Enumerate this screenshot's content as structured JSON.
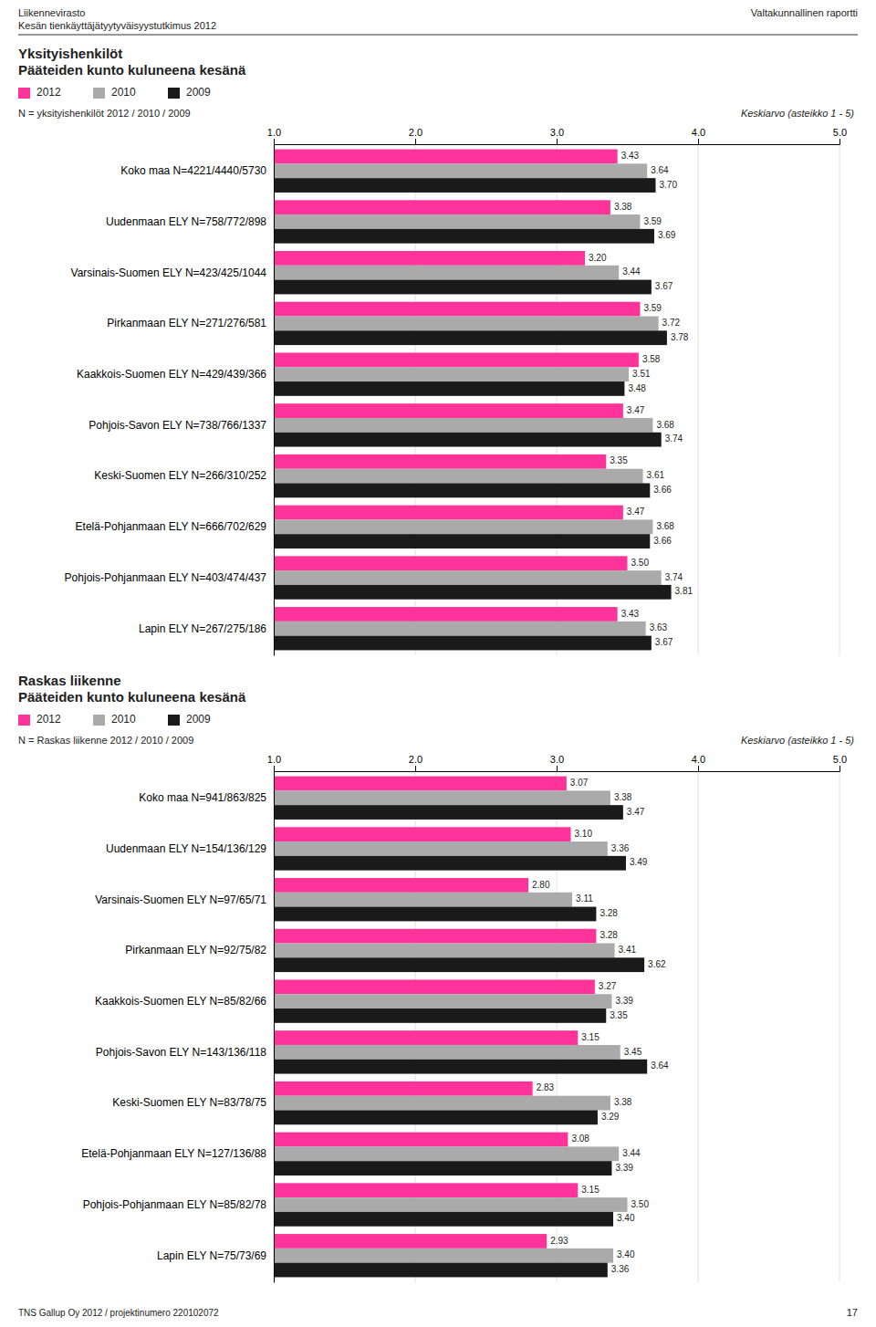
{
  "header_left": [
    "Liikennevirasto",
    "Kesän tienkäyttäjätyytyväisyystutkimus 2012"
  ],
  "header_right": "Valtakunnallinen raportti",
  "footer": "TNS Gallup Oy 2012 / projektinumero 220102072",
  "page_number": "17",
  "chart_data": [
    {
      "type": "bar",
      "orientation": "horizontal",
      "title": "Yksityishenkilöt",
      "subtitle": "Pääteiden kunto kuluneena kesänä",
      "annotations": [
        "N = yksityishenkilöt 2012 / 2010 / 2009"
      ],
      "xlabel": "Keskiarvo (asteikko 1 - 5)",
      "legend": "upper left",
      "grid": true,
      "data_labels": true,
      "categories": [
        "Koko maa N=4221/4440/5730",
        "Uudenmaan ELY N=758/772/898",
        "Varsinais-Suomen ELY N=423/425/1044",
        "Pirkanmaan ELY N=271/276/581",
        "Kaakkois-Suomen ELY N=429/439/366",
        "Pohjois-Savon ELY N=738/766/1337",
        "Keski-Suomen ELY N=266/310/252",
        "Etelä-Pohjanmaan ELY N=666/702/629",
        "Pohjois-Pohjanmaan ELY N=403/474/437",
        "Lapin ELY N=267/275/186"
      ],
      "series": [
        {
          "name": "2012",
          "color": "#FF3399",
          "values": [
            3.43,
            3.38,
            3.2,
            3.59,
            3.58,
            3.47,
            3.35,
            3.47,
            3.5,
            3.43
          ],
          "value_labels": [
            "3.43",
            "3.38",
            "3.20",
            "3.59",
            "3.58",
            "3.47",
            "3.35",
            "3.47",
            "3.50",
            "3.43"
          ]
        },
        {
          "name": "2010",
          "color": "#AAAAAA",
          "values": [
            3.64,
            3.59,
            3.44,
            3.72,
            3.51,
            3.68,
            3.61,
            3.68,
            3.74,
            3.63
          ],
          "value_labels": [
            "3.64",
            "3.59",
            "3.44",
            "3.72",
            "3.51",
            "3.68",
            "3.61",
            "3.68",
            "3.74",
            "3.63"
          ]
        },
        {
          "name": "2009",
          "color": "#1A1A1A",
          "values": [
            3.7,
            3.69,
            3.67,
            3.78,
            3.48,
            3.74,
            3.66,
            3.66,
            3.81,
            3.67
          ],
          "value_labels": [
            "3.70",
            "3.69",
            "3.67",
            "3.78",
            "3.48",
            "3.74",
            "3.66",
            "3.66",
            "3.81",
            "3.67"
          ]
        }
      ],
      "xlim": [
        1.0,
        5.0
      ],
      "xticks": [
        {
          "value": 1.0,
          "label": "1.0"
        },
        {
          "value": 2.0,
          "label": "2.0"
        },
        {
          "value": 3.0,
          "label": "3.0"
        },
        {
          "value": 4.0,
          "label": "4.0"
        },
        {
          "value": 5.0,
          "label": "5.0"
        }
      ]
    },
    {
      "type": "bar",
      "orientation": "horizontal",
      "title": "Raskas liikenne",
      "subtitle": "Pääteiden kunto kuluneena kesänä",
      "annotations": [
        "N = Raskas liikenne 2012 / 2010 / 2009"
      ],
      "xlabel": "Keskiarvo (asteikko 1 - 5)",
      "legend": "upper left",
      "grid": true,
      "data_labels": true,
      "categories": [
        "Koko maa N=941/863/825",
        "Uudenmaan ELY N=154/136/129",
        "Varsinais-Suomen ELY N=97/65/71",
        "Pirkanmaan ELY N=92/75/82",
        "Kaakkois-Suomen ELY N=85/82/66",
        "Pohjois-Savon ELY N=143/136/118",
        "Keski-Suomen ELY N=83/78/75",
        "Etelä-Pohjanmaan ELY N=127/136/88",
        "Pohjois-Pohjanmaan ELY N=85/82/78",
        "Lapin ELY N=75/73/69"
      ],
      "series": [
        {
          "name": "2012",
          "color": "#FF3399",
          "values": [
            3.07,
            3.1,
            2.8,
            3.28,
            3.27,
            3.15,
            2.83,
            3.08,
            3.15,
            2.93
          ],
          "value_labels": [
            "3.07",
            "3.10",
            "2.80",
            "3.28",
            "3.27",
            "3.15",
            "2.83",
            "3.08",
            "3.15",
            "2.93"
          ]
        },
        {
          "name": "2010",
          "color": "#AAAAAA",
          "values": [
            3.38,
            3.36,
            3.11,
            3.41,
            3.39,
            3.45,
            3.38,
            3.44,
            3.5,
            3.4
          ],
          "value_labels": [
            "3.38",
            "3.36",
            "3.11",
            "3.41",
            "3.39",
            "3.45",
            "3.38",
            "3.44",
            "3.50",
            "3.40"
          ]
        },
        {
          "name": "2009",
          "color": "#1A1A1A",
          "values": [
            3.47,
            3.49,
            3.28,
            3.62,
            3.35,
            3.64,
            3.29,
            3.39,
            3.4,
            3.36
          ],
          "value_labels": [
            "3.47",
            "3.49",
            "3.28",
            "3.62",
            "3.35",
            "3.64",
            "3.29",
            "3.39",
            "3.40",
            "3.36"
          ]
        }
      ],
      "xlim": [
        1.0,
        5.0
      ],
      "xticks": [
        {
          "value": 1.0,
          "label": "1.0"
        },
        {
          "value": 2.0,
          "label": "2.0"
        },
        {
          "value": 3.0,
          "label": "3.0"
        },
        {
          "value": 4.0,
          "label": "4.0"
        },
        {
          "value": 5.0,
          "label": "5.0"
        }
      ]
    }
  ]
}
